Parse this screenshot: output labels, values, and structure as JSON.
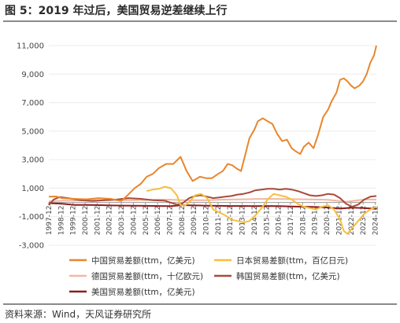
{
  "header": {
    "title": "图 5：2019 年过后，美国贸易逆差继续上行"
  },
  "footer": {
    "source": "资料来源：Wind，天风证券研究所"
  },
  "chart_data": {
    "type": "line",
    "ylim": [
      -3000,
      11000
    ],
    "yticks": [
      -3000,
      -1000,
      1000,
      3000,
      5000,
      7000,
      9000,
      11000
    ],
    "ytick_labels": [
      "-3,000",
      "-1,000",
      "1,000",
      "3,000",
      "5,000",
      "7,000",
      "9,000",
      "11,000"
    ],
    "xtick_labels": [
      "1997-12",
      "1998-12",
      "1999-12",
      "2000-12",
      "2001-12",
      "2002-12",
      "2003-12",
      "2004-12",
      "2005-12",
      "2006-12",
      "2007-12",
      "2008-12",
      "2009-12",
      "2010-12",
      "2011-12",
      "2012-12",
      "2013-12",
      "2014-12",
      "2015-12",
      "2016-12",
      "2017-12",
      "2018-12",
      "2019-12",
      "2020-12",
      "2021-12",
      "2022-12",
      "2023-12",
      "2024-12"
    ],
    "series": [
      {
        "name": "中国贸易差额(ttm，亿美元)",
        "color": "#E8862E",
        "x": [
          1997.9,
          1998.5,
          1999.0,
          2000.0,
          2001.0,
          2002.0,
          2003.0,
          2003.9,
          2004.3,
          2005.0,
          2005.5,
          2006.0,
          2006.5,
          2007.0,
          2007.6,
          2008.2,
          2008.8,
          2009.3,
          2009.8,
          2010.4,
          2010.9,
          2011.4,
          2011.9,
          2012.3,
          2012.7,
          2013.1,
          2013.4,
          2013.8,
          2014.2,
          2014.5,
          2014.9,
          2015.2,
          2015.6,
          2016.0,
          2016.4,
          2016.8,
          2017.2,
          2017.6,
          2018.0,
          2018.3,
          2018.7,
          2019.0,
          2019.4,
          2019.8,
          2020.2,
          2020.6,
          2021.0,
          2021.3,
          2021.7,
          2022.0,
          2022.3,
          2022.6,
          2022.9,
          2023.2,
          2023.6,
          2023.9,
          2024.2,
          2024.5,
          2024.8,
          2025.0
        ],
        "values": [
          400,
          420,
          300,
          250,
          220,
          300,
          250,
          100,
          400,
          1000,
          1300,
          1800,
          2000,
          2400,
          2700,
          2700,
          3200,
          2200,
          1500,
          1800,
          1700,
          1700,
          2000,
          2200,
          2700,
          2600,
          2400,
          2200,
          3500,
          4500,
          5100,
          5700,
          5900,
          5700,
          5500,
          4800,
          4300,
          4400,
          3800,
          3600,
          3400,
          3900,
          4200,
          3800,
          4800,
          6000,
          6500,
          7100,
          7700,
          8600,
          8700,
          8500,
          8200,
          8000,
          8200,
          8500,
          9000,
          9800,
          10300,
          11000
        ]
      },
      {
        "name": "日本贸易差额(ttm，百亿日元)",
        "color": "#F5C03C",
        "x": [
          2006.0,
          2006.5,
          2007.0,
          2007.5,
          2008.0,
          2008.5,
          2008.8,
          2009.2,
          2009.6,
          2010.0,
          2010.5,
          2011.0,
          2011.5,
          2012.0,
          2012.5,
          2013.0,
          2013.5,
          2014.0,
          2014.5,
          2015.0,
          2015.5,
          2016.0,
          2016.5,
          2017.0,
          2017.5,
          2018.0,
          2018.5,
          2019.0,
          2019.5,
          2020.0,
          2020.5,
          2021.0,
          2021.5,
          2022.0,
          2022.3,
          2022.6,
          2023.0,
          2023.3,
          2023.6,
          2024.0,
          2024.5,
          2025.0
        ],
        "values": [
          800,
          900,
          950,
          1100,
          1000,
          500,
          -200,
          -200,
          100,
          500,
          600,
          300,
          -500,
          -700,
          -900,
          -1200,
          -1300,
          -1400,
          -1300,
          -900,
          -400,
          200,
          600,
          500,
          400,
          200,
          -100,
          -300,
          -400,
          -500,
          -300,
          -200,
          -500,
          -1200,
          -2000,
          -2200,
          -1800,
          -1500,
          -1200,
          -800,
          -500,
          -300
        ]
      },
      {
        "name": "德国贸易差额(ttm，十亿欧元)",
        "color": "#F2B7A0",
        "x": [
          1997.9,
          1998.5,
          1999.0,
          2000.0,
          2001.0,
          2002.0,
          2003.0,
          2004.0,
          2005.0,
          2006.0,
          2007.0,
          2008.0,
          2009.0,
          2010.0,
          2011.0,
          2012.0,
          2013.0,
          2014.0,
          2015.0,
          2016.0,
          2017.0,
          2018.0,
          2019.0,
          2020.0,
          2021.0,
          2022.0,
          2022.5,
          2023.0,
          2024.0,
          2025.0
        ],
        "values": [
          80,
          100,
          120,
          130,
          150,
          160,
          150,
          150,
          160,
          170,
          200,
          190,
          150,
          160,
          160,
          190,
          200,
          220,
          240,
          250,
          240,
          230,
          220,
          200,
          180,
          90,
          40,
          100,
          200,
          200
        ]
      },
      {
        "name": "韩国贸易差额(ttm，亿美元)",
        "color": "#A84B3C",
        "x": [
          1997.9,
          1998.3,
          1998.8,
          1999.5,
          2000.5,
          2001.5,
          2002.5,
          2003.5,
          2004.5,
          2005.5,
          2006.5,
          2007.5,
          2008.5,
          2008.9,
          2009.5,
          2010.0,
          2010.5,
          2011.0,
          2011.5,
          2012.0,
          2012.5,
          2013.0,
          2013.5,
          2014.0,
          2014.5,
          2015.0,
          2015.5,
          2016.0,
          2016.5,
          2017.0,
          2017.5,
          2018.0,
          2018.5,
          2019.0,
          2019.5,
          2020.0,
          2020.5,
          2021.0,
          2021.5,
          2022.0,
          2022.5,
          2023.0,
          2023.5,
          2024.0,
          2024.5,
          2025.0
        ],
        "values": [
          -200,
          200,
          380,
          300,
          150,
          100,
          150,
          200,
          300,
          250,
          150,
          120,
          -150,
          -100,
          300,
          450,
          500,
          400,
          300,
          350,
          400,
          450,
          550,
          600,
          700,
          850,
          900,
          950,
          950,
          900,
          950,
          900,
          800,
          650,
          500,
          450,
          500,
          600,
          550,
          300,
          -100,
          -300,
          -150,
          200,
          400,
          450
        ]
      },
      {
        "name": "美国贸易差额(ttm，亿美元)",
        "color": "#8E1D1D",
        "x": [
          1997.9,
          1999.0,
          2000.0,
          2001.0,
          2002.0,
          2003.0,
          2004.0,
          2005.0,
          2006.0,
          2007.0,
          2008.0,
          2009.0,
          2009.5,
          2010.0,
          2011.0,
          2012.0,
          2013.0,
          2014.0,
          2015.0,
          2016.0,
          2017.0,
          2018.0,
          2019.0,
          2020.0,
          2021.0,
          2022.0,
          2023.0,
          2024.0,
          2025.0
        ],
        "values": [
          -50,
          -90,
          -180,
          -180,
          -190,
          -210,
          -220,
          -230,
          -240,
          -250,
          -260,
          -190,
          -200,
          -210,
          -230,
          -240,
          -250,
          -250,
          -260,
          -250,
          -260,
          -290,
          -300,
          -320,
          -360,
          -430,
          -370,
          -400,
          -450
        ]
      }
    ]
  }
}
